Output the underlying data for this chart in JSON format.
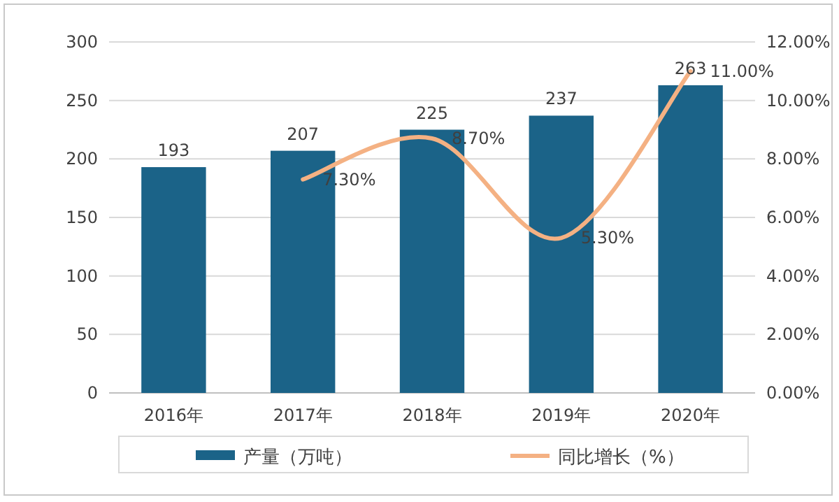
{
  "chart_data": {
    "type": "bar",
    "categories": [
      "2016年",
      "2017年",
      "2018年",
      "2019年",
      "2020年"
    ],
    "series": [
      {
        "name": "产量（万吨）",
        "color": "#1b6388",
        "values": [
          193,
          207,
          225,
          237,
          263
        ],
        "value_labels": [
          "193",
          "207",
          "225",
          "237",
          "263"
        ]
      },
      {
        "name": "同比增长（%）",
        "type": "line",
        "axis": "y2",
        "color": "#f4b183",
        "values": [
          null,
          7.3,
          8.7,
          5.3,
          11.0
        ],
        "value_labels": [
          null,
          "7.30%",
          "8.70%",
          "5.30%",
          "11.00%"
        ]
      }
    ],
    "ylim": [
      0,
      300
    ],
    "yticks": [
      0,
      50,
      100,
      150,
      200,
      250,
      300
    ],
    "y2lim": [
      0,
      12
    ],
    "y2ticks": [
      {
        "value": 0,
        "label": "0.00%"
      },
      {
        "value": 2,
        "label": "2.00%"
      },
      {
        "value": 4,
        "label": "4.00%"
      },
      {
        "value": 6,
        "label": "6.00%"
      },
      {
        "value": 8,
        "label": "8.00%"
      },
      {
        "value": 10,
        "label": "10.00%"
      },
      {
        "value": 12,
        "label": "12.00%"
      }
    ],
    "grid": "y",
    "legend": "bottom"
  }
}
